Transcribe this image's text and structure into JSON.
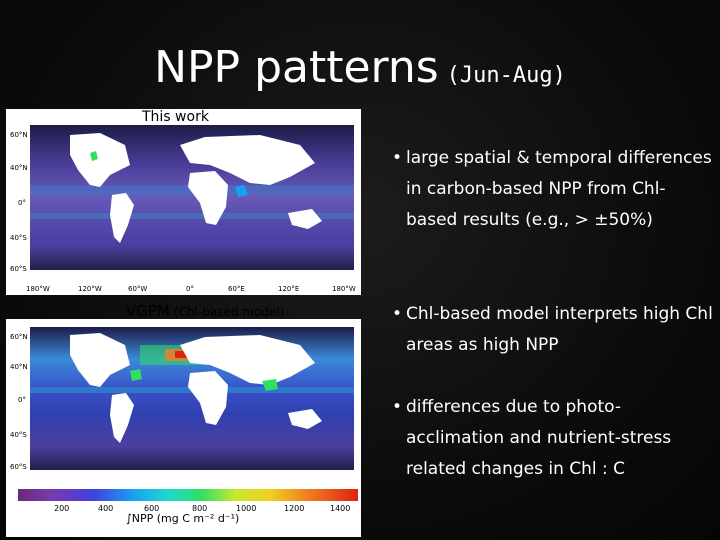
{
  "title": {
    "main": "NPP patterns",
    "sub": "(Jun-Aug)"
  },
  "panel_top": {
    "label": "This work"
  },
  "panel_bottom": {
    "label": "VGPM",
    "label_note": "(Chl-based model)"
  },
  "map_axes": {
    "lat_labels": [
      "60°N",
      "40°N",
      "0°",
      "40°S",
      "60°S"
    ],
    "lon_labels": [
      "180°W",
      "120°W",
      "60°W",
      "0°",
      "60°E",
      "120°E",
      "180°W"
    ]
  },
  "colorbar": {
    "ticks": [
      "200",
      "400",
      "600",
      "800",
      "1000",
      "1200",
      "1400"
    ],
    "units": "∫NPP (mg C m⁻² d⁻¹)",
    "colors": [
      "#6a2a7a",
      "#4040e0",
      "#1aa0f0",
      "#30e060",
      "#f0d020",
      "#e02010"
    ]
  },
  "bullets": [
    {
      "dot": "•",
      "text": "large spatial & temporal differences in carbon-based NPP from Chl-based results (e.g., > ±50%)"
    },
    {
      "dot": "•",
      "text": "Chl-based model interprets high Chl areas as high NPP"
    },
    {
      "dot": "•",
      "text": "differences due to photo-acclimation and nutrient-stress related changes in Chl : C"
    }
  ]
}
